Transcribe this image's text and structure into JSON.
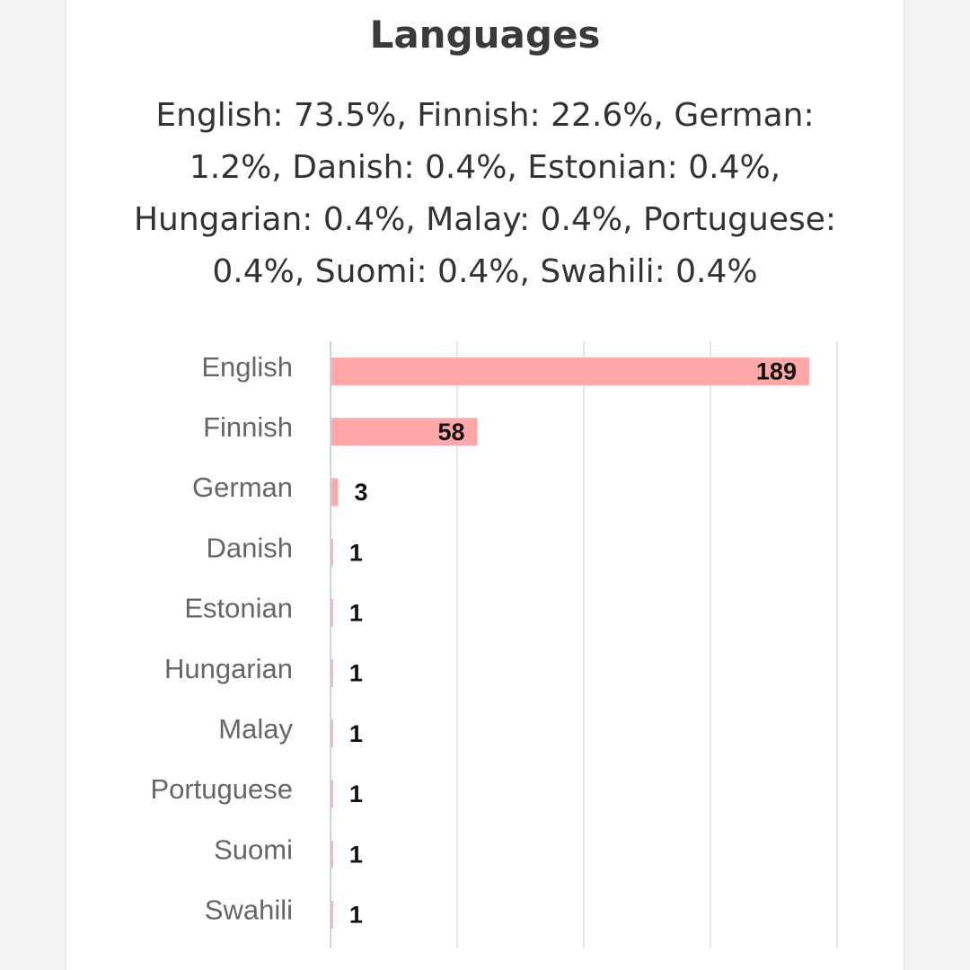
{
  "card": {
    "title": "Languages",
    "summary": "English: 73.5%, Finnish: 22.6%, German: 1.2%, Danish: 0.4%, Estonian: 0.4%, Hungarian: 0.4%, Malay: 0.4%, Portuguese: 0.4%, Suomi: 0.4%, Swahili: 0.4%"
  },
  "colors": {
    "bar": "#ffa8aa",
    "grid": "#e6e6e6",
    "axis": "#c9d3e6"
  },
  "chart_data": {
    "type": "bar",
    "orientation": "horizontal",
    "categories": [
      "English",
      "Finnish",
      "German",
      "Danish",
      "Estonian",
      "Hungarian",
      "Malay",
      "Portuguese",
      "Suomi",
      "Swahili"
    ],
    "values": [
      189,
      58,
      3,
      1,
      1,
      1,
      1,
      1,
      1,
      1
    ],
    "data_labels": [
      "189",
      "58",
      "3",
      "1",
      "1",
      "1",
      "1",
      "1",
      "1",
      "1"
    ],
    "xlim": [
      0,
      200
    ],
    "grid": true,
    "legend": "none",
    "title": "",
    "xlabel": "",
    "ylabel": ""
  }
}
